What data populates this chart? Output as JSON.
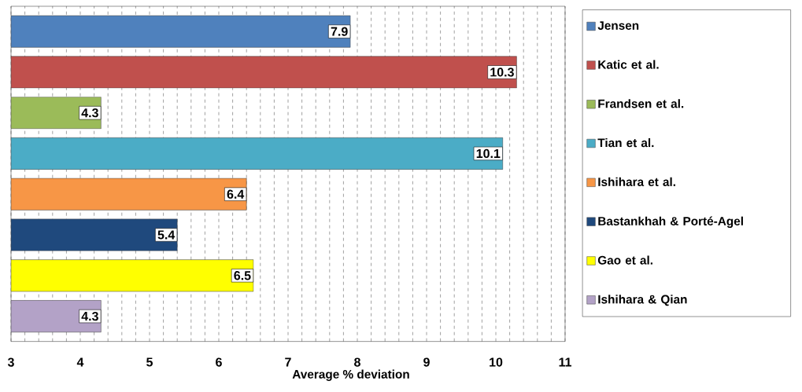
{
  "chart_data": {
    "type": "bar",
    "orientation": "horizontal",
    "xlabel": "Average % deviation",
    "categories": [
      null,
      null,
      null,
      null,
      null,
      null,
      null,
      null
    ],
    "series": [
      {
        "name": "Jensen",
        "color": "#4f81bd",
        "values": [
          7.9,
          null,
          null,
          null,
          null,
          null,
          null,
          null
        ]
      },
      {
        "name": "Katic et al.",
        "color": "#c0504d",
        "values": [
          null,
          10.3,
          null,
          null,
          null,
          null,
          null,
          null
        ]
      },
      {
        "name": "Frandsen et al.",
        "color": "#9bbb59",
        "values": [
          null,
          null,
          4.3,
          null,
          null,
          null,
          null,
          null
        ]
      },
      {
        "name": "Tian et al.",
        "color": "#4bacc6",
        "values": [
          null,
          null,
          null,
          10.1,
          null,
          null,
          null,
          null
        ]
      },
      {
        "name": "Ishihara et al.",
        "color": "#f79646",
        "values": [
          null,
          null,
          null,
          null,
          6.4,
          null,
          null,
          null
        ]
      },
      {
        "name": "Bastankhah & Porté-Agel",
        "color": "#1f497d",
        "values": [
          null,
          null,
          null,
          null,
          null,
          5.4,
          null,
          null
        ]
      },
      {
        "name": "Gao et al.",
        "color": "#ffff00",
        "values": [
          null,
          null,
          null,
          null,
          null,
          null,
          6.5,
          null
        ]
      },
      {
        "name": "Ishihara & Qian",
        "color": "#b3a2c7",
        "values": [
          null,
          null,
          null,
          null,
          null,
          null,
          null,
          4.3
        ]
      }
    ],
    "xlim": [
      3,
      11
    ],
    "xticks": [
      3,
      4,
      5,
      6,
      7,
      8,
      9,
      10,
      11
    ],
    "grid": "x",
    "legend": "right",
    "data_labels": true
  }
}
